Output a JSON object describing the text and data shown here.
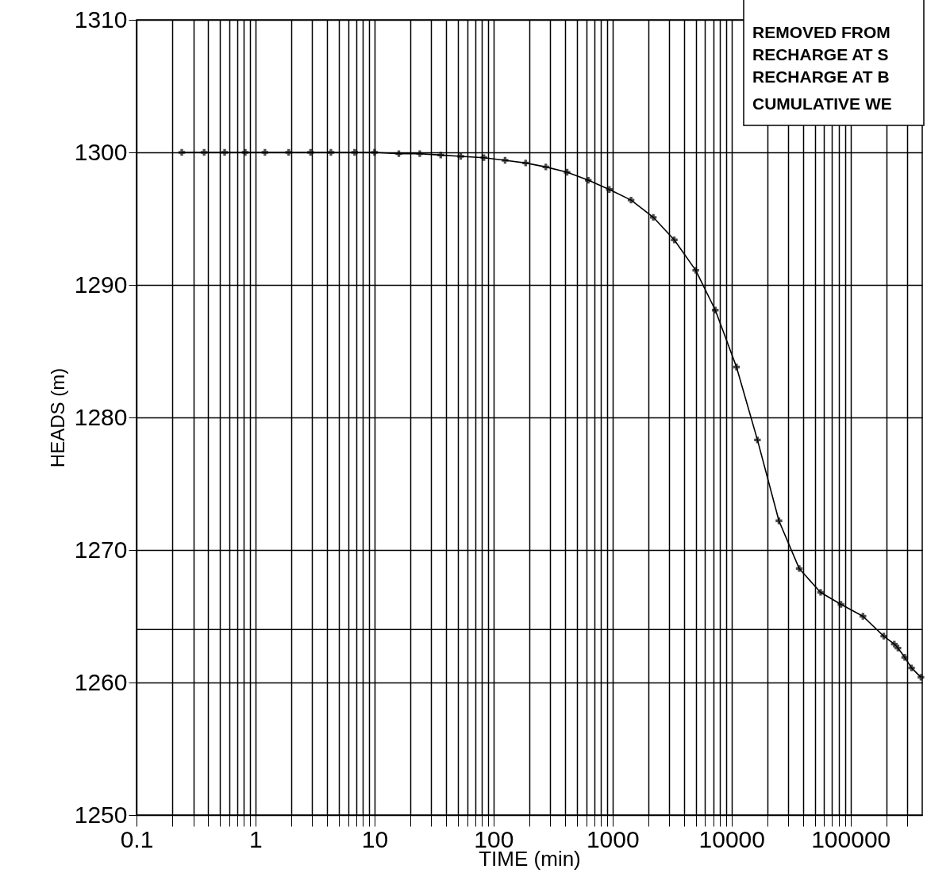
{
  "chart_data": {
    "type": "line",
    "xlabel": "TIME (min)",
    "ylabel": "HEADS (m)",
    "log": "x",
    "grid": true,
    "marker": "cross",
    "line_style": "solid",
    "annotations": [
      "REMOVED FROM",
      "RECHARGE AT S",
      "RECHARGE AT B",
      "CUMULATIVE WE"
    ],
    "xlim": [
      0.1,
      400000
    ],
    "ylim": [
      1250,
      1310
    ],
    "yticks": [
      1250,
      1260,
      1270,
      1280,
      1290,
      1300,
      1310
    ],
    "xticks": [
      0.1,
      {
        "value": 0.2,
        "label": null
      },
      {
        "value": 0.3,
        "label": null
      },
      {
        "value": 0.4,
        "label": null
      },
      {
        "value": 0.5,
        "label": null
      },
      {
        "value": 0.6,
        "label": null
      },
      {
        "value": 0.7,
        "label": null
      },
      {
        "value": 0.8,
        "label": null
      },
      {
        "value": 0.9,
        "label": null
      },
      1,
      {
        "value": 2,
        "label": null
      },
      {
        "value": 3,
        "label": null
      },
      {
        "value": 4,
        "label": null
      },
      {
        "value": 5,
        "label": null
      },
      {
        "value": 6,
        "label": null
      },
      {
        "value": 7,
        "label": null
      },
      {
        "value": 8,
        "label": null
      },
      {
        "value": 9,
        "label": null
      },
      10,
      {
        "value": 20,
        "label": null
      },
      {
        "value": 30,
        "label": null
      },
      {
        "value": 40,
        "label": null
      },
      {
        "value": 50,
        "label": null
      },
      {
        "value": 60,
        "label": null
      },
      {
        "value": 70,
        "label": null
      },
      {
        "value": 80,
        "label": null
      },
      {
        "value": 90,
        "label": null
      },
      100,
      {
        "value": 200,
        "label": null
      },
      {
        "value": 300,
        "label": null
      },
      {
        "value": 400,
        "label": null
      },
      {
        "value": 500,
        "label": null
      },
      {
        "value": 600,
        "label": null
      },
      {
        "value": 700,
        "label": null
      },
      {
        "value": 800,
        "label": null
      },
      {
        "value": 900,
        "label": null
      },
      1000,
      {
        "value": 2000,
        "label": null
      },
      {
        "value": 3000,
        "label": null
      },
      {
        "value": 4000,
        "label": null
      },
      {
        "value": 5000,
        "label": null
      },
      {
        "value": 6000,
        "label": null
      },
      {
        "value": 7000,
        "label": null
      },
      {
        "value": 8000,
        "label": null
      },
      {
        "value": 9000,
        "label": null
      },
      10000,
      {
        "value": 20000,
        "label": null
      },
      {
        "value": 30000,
        "label": null
      },
      {
        "value": 40000,
        "label": null
      },
      {
        "value": 50000,
        "label": null
      },
      {
        "value": 60000,
        "label": null
      },
      {
        "value": 70000,
        "label": null
      },
      {
        "value": 80000,
        "label": null
      },
      {
        "value": 90000,
        "label": null
      },
      100000,
      {
        "value": 200000,
        "label": null
      },
      {
        "value": 300000,
        "label": null
      }
    ],
    "ref_lines": [
      {
        "axis": "y",
        "value": 1264,
        "label": null,
        "color": "#000000"
      }
    ],
    "series": [
      {
        "color": "#000000",
        "x": [
          0.24,
          0.37,
          0.55,
          0.82,
          1.2,
          1.9,
          2.9,
          4.3,
          6.8,
          10,
          16,
          24,
          36,
          53,
          83,
          125,
          186,
          275,
          415,
          625,
          940,
          1430,
          2200,
          3300,
          5000,
          7300,
          11000,
          16500,
          25000,
          37000,
          56000,
          83000,
          127000,
          190000,
          233000,
          250000,
          285000,
          325000,
          390000
        ],
        "values": [
          1300,
          1300,
          1300,
          1300,
          1300,
          1300,
          1300,
          1300,
          1300,
          1300,
          1299.9,
          1299.9,
          1299.8,
          1299.7,
          1299.6,
          1299.4,
          1299.2,
          1298.9,
          1298.5,
          1297.9,
          1297.2,
          1296.4,
          1295.1,
          1293.4,
          1291.1,
          1288.1,
          1283.8,
          1278.3,
          1272.2,
          1268.6,
          1266.8,
          1265.9,
          1265,
          1263.5,
          1262.9,
          1262.6,
          1261.9,
          1261.1,
          1260.4
        ]
      }
    ]
  }
}
